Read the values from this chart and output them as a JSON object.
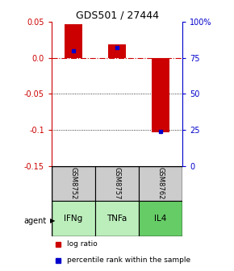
{
  "title": "GDS501 / 27444",
  "samples": [
    "GSM8752",
    "GSM8757",
    "GSM8762"
  ],
  "agents": [
    "IFNg",
    "TNFa",
    "IL4"
  ],
  "log_ratios": [
    0.046,
    0.018,
    -0.103
  ],
  "percentile_ranks": [
    0.8,
    0.82,
    0.24
  ],
  "ylim_left": [
    -0.15,
    0.05
  ],
  "ylim_right": [
    0.0,
    1.0
  ],
  "yticks_left": [
    0.05,
    0.0,
    -0.05,
    -0.1,
    -0.15
  ],
  "yticks_right": [
    1.0,
    0.75,
    0.5,
    0.25,
    0.0
  ],
  "ytick_labels_right": [
    "100%",
    "75",
    "50",
    "25",
    "0"
  ],
  "bar_color_red": "#cc0000",
  "bar_color_blue": "#0000cc",
  "zero_line_color": "#cc0000",
  "grid_color": "#000000",
  "sample_bg": "#cccccc",
  "agent_bg_light": "#bbeebb",
  "agent_bg_dark": "#66cc66",
  "bar_width": 0.4,
  "agent_label": "agent",
  "legend_log_ratio": "log ratio",
  "legend_percentile": "percentile rank within the sample"
}
